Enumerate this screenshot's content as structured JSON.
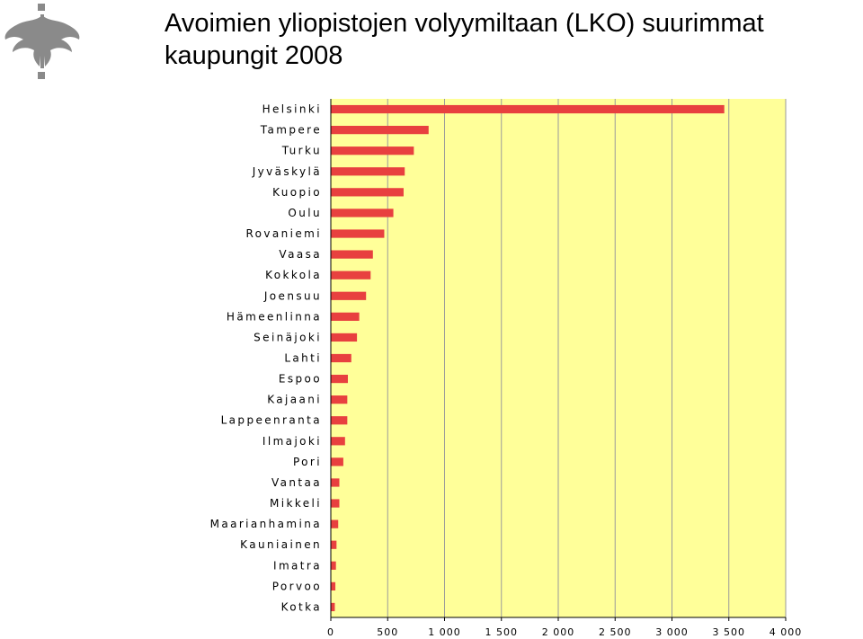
{
  "title": "Avoimien yliopistojen volyymiltaan (LKO) suurimmat kaupungit 2008",
  "colors": {
    "bar": "#e8403f",
    "plot_bg": "#ffff99",
    "grid": "#9a9a9a"
  },
  "logo": {
    "icon": "university-flame-logo"
  },
  "chart_data": {
    "type": "bar",
    "orientation": "horizontal",
    "title": "Avoimien yliopistojen volyymiltaan (LKO) suurimmat kaupungit 2008",
    "xlabel": "",
    "ylabel": "",
    "xlim": [
      0,
      4000
    ],
    "xticks": [
      0,
      500,
      1000,
      1500,
      2000,
      2500,
      3000,
      3500,
      4000
    ],
    "xtick_labels": [
      "0",
      "500",
      "1 000",
      "1 500",
      "2 000",
      "2 500",
      "3 000",
      "3 500",
      "4 000"
    ],
    "grid": true,
    "legend": "none",
    "categories": [
      "Helsinki",
      "Tampere",
      "Turku",
      "Jyväskylä",
      "Kuopio",
      "Oulu",
      "Rovaniemi",
      "Vaasa",
      "Kokkola",
      "Joensuu",
      "Hämeenlinna",
      "Seinäjoki",
      "Lahti",
      "Espoo",
      "Kajaani",
      "Lappeenranta",
      "Ilmajoki",
      "Pori",
      "Vantaa",
      "Mikkeli",
      "Maarianhamina",
      "Kauniainen",
      "Imatra",
      "Porvoo",
      "Kotka"
    ],
    "values": [
      3460,
      860,
      730,
      650,
      640,
      550,
      470,
      370,
      350,
      310,
      250,
      230,
      180,
      150,
      145,
      145,
      125,
      110,
      75,
      75,
      65,
      50,
      45,
      40,
      35
    ]
  }
}
